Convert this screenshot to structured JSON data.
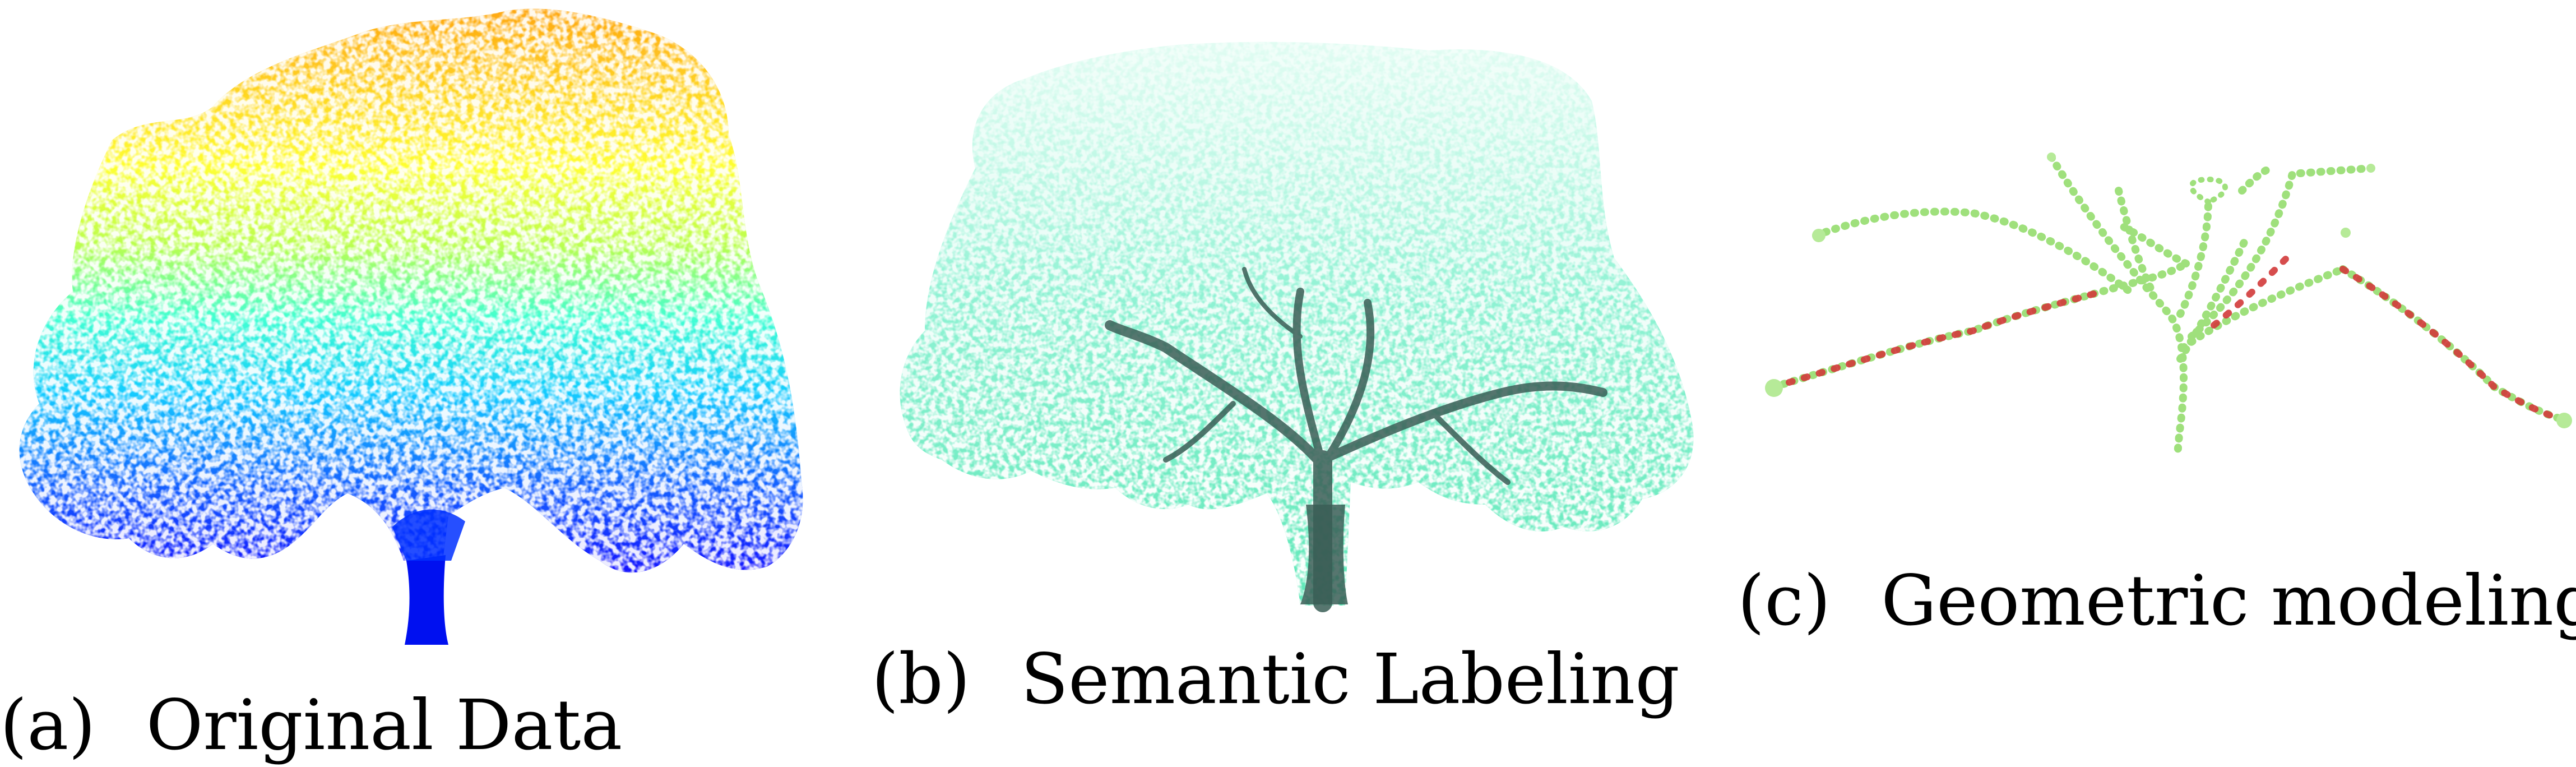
{
  "panels": [
    {
      "label": "(a)",
      "title": "Original Data"
    },
    {
      "label": "(b)",
      "title": "Semantic Labeling"
    },
    {
      "label": "(c)",
      "title": "Geometric modeling"
    }
  ],
  "colors": {
    "height_ramp": [
      "#0000ff",
      "#0060ff",
      "#00c8ff",
      "#40ffc0",
      "#c8ff30",
      "#ffff00",
      "#ffa000"
    ],
    "leaf_label": "#5fe8b8",
    "wood_label": "#3a5e56",
    "skeleton_node": "#9fe07c",
    "skeleton_joint": "#d23a3a"
  }
}
